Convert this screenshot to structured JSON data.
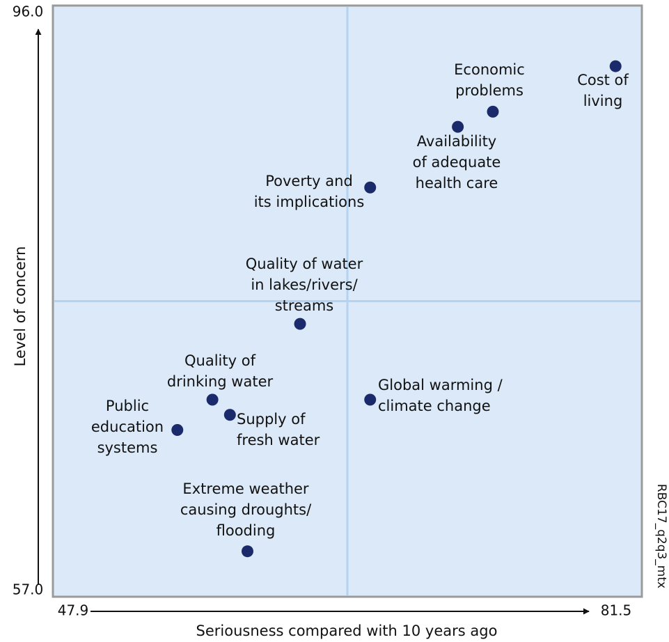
{
  "chart_data": {
    "type": "scatter",
    "xlabel": "Seriousness compared with 10 years ago",
    "ylabel": "Level of concern",
    "note": "RBC17_q2q3_mtx",
    "xlim": [
      47.9,
      81.5
    ],
    "ylim": [
      57.0,
      96.0
    ],
    "xticks": [
      47.9,
      81.5
    ],
    "yticks": [
      {
        "value": 57.0,
        "label": "57.0"
      },
      {
        "value": 96.0,
        "label": "96.0"
      }
    ],
    "quadrant_lines": {
      "x": 64.7,
      "y": 76.5
    },
    "color": "#1b2a6b",
    "x": [
      80.0,
      73.0,
      71.0,
      66.0,
      62.0,
      66.0,
      57.0,
      58.0,
      55.0,
      59.0
    ],
    "values": [
      92.0,
      89.0,
      88.0,
      84.0,
      75.0,
      70.0,
      70.0,
      69.0,
      68.0,
      60.0
    ],
    "labels": [
      [
        "Cost of",
        "living"
      ],
      [
        "Economic",
        "problems"
      ],
      [
        "Availability",
        "of adequate",
        "health care"
      ],
      [
        "Poverty and",
        "its implications"
      ],
      [
        "Quality of water",
        "in lakes/rivers/",
        "streams"
      ],
      [
        "Global warming /",
        "climate change"
      ],
      [
        "Quality of",
        "drinking water"
      ],
      [
        "Supply of",
        "fresh water"
      ],
      [
        "Public",
        "education",
        "systems"
      ],
      [
        "Extreme weather",
        "causing droughts/",
        "flooding"
      ]
    ]
  }
}
